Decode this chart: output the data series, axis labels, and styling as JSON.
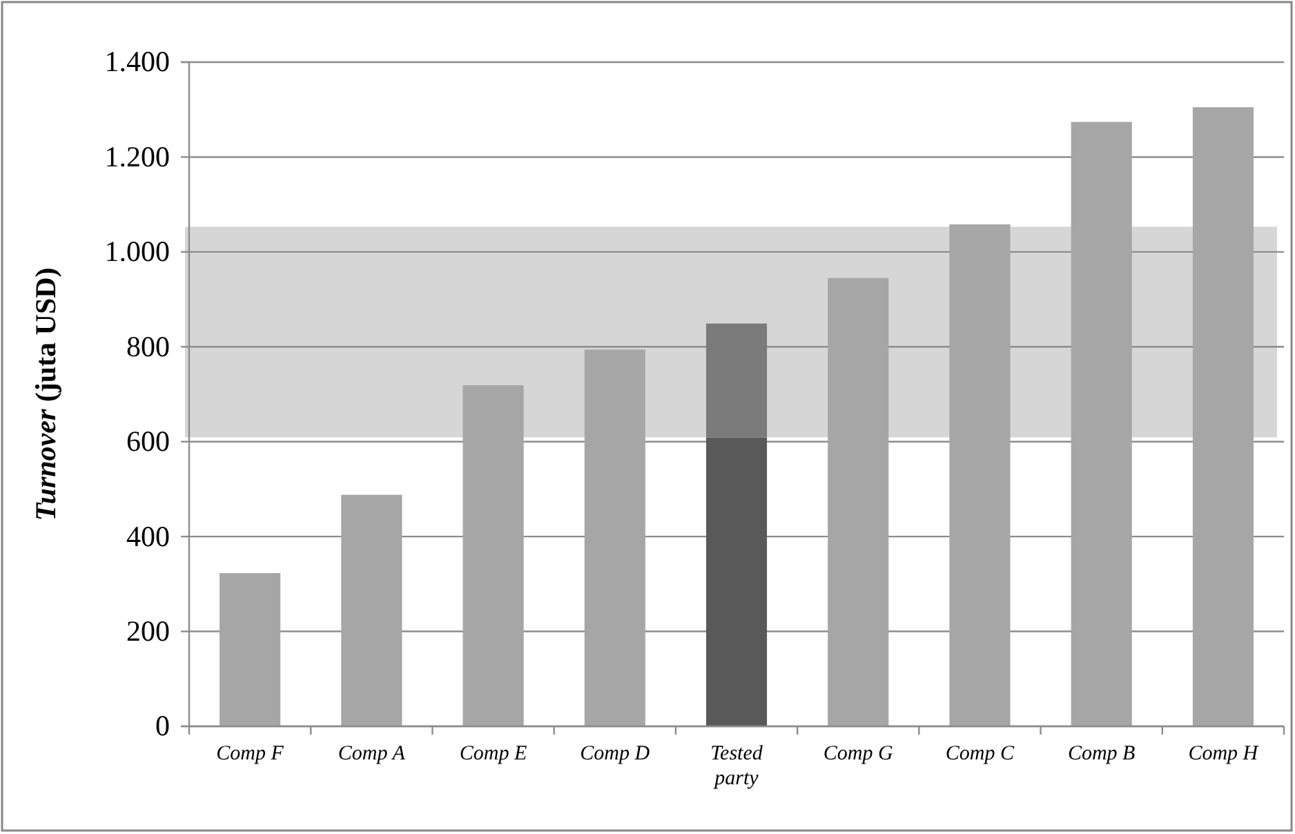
{
  "chart_data": {
    "type": "bar",
    "ylabel": "Turnover (juta USD)",
    "categories": [
      "Comp F",
      "Comp A",
      "Comp E",
      "Comp D",
      "Tested party",
      "Comp G",
      "Comp C",
      "Comp B",
      "Comp H"
    ],
    "stacked": true,
    "series": [
      {
        "colors": [
          "#a6a6a6",
          "#a6a6a6",
          "#a6a6a6",
          "#a6a6a6",
          "#595959",
          "#a6a6a6",
          "#a6a6a6",
          "#a6a6a6",
          "#a6a6a6"
        ],
        "values": [
          323,
          488,
          719,
          794,
          609,
          945,
          1058,
          1274,
          1305
        ]
      },
      {
        "color": "#7a7a7a",
        "values": [
          null,
          null,
          null,
          null,
          240,
          null,
          null,
          null,
          null
        ]
      }
    ],
    "ylim": [
      0,
      1400
    ],
    "yticks": [
      0,
      200,
      400,
      600,
      800,
      {
        "value": 1000,
        "label": "1.000"
      },
      {
        "value": 1200,
        "label": "1.200"
      },
      {
        "value": 1400,
        "label": "1.400"
      }
    ],
    "bands": [
      {
        "axis": "y",
        "from": 609,
        "to": 1053,
        "color": "#d6d6d6"
      }
    ],
    "grid": "y"
  }
}
